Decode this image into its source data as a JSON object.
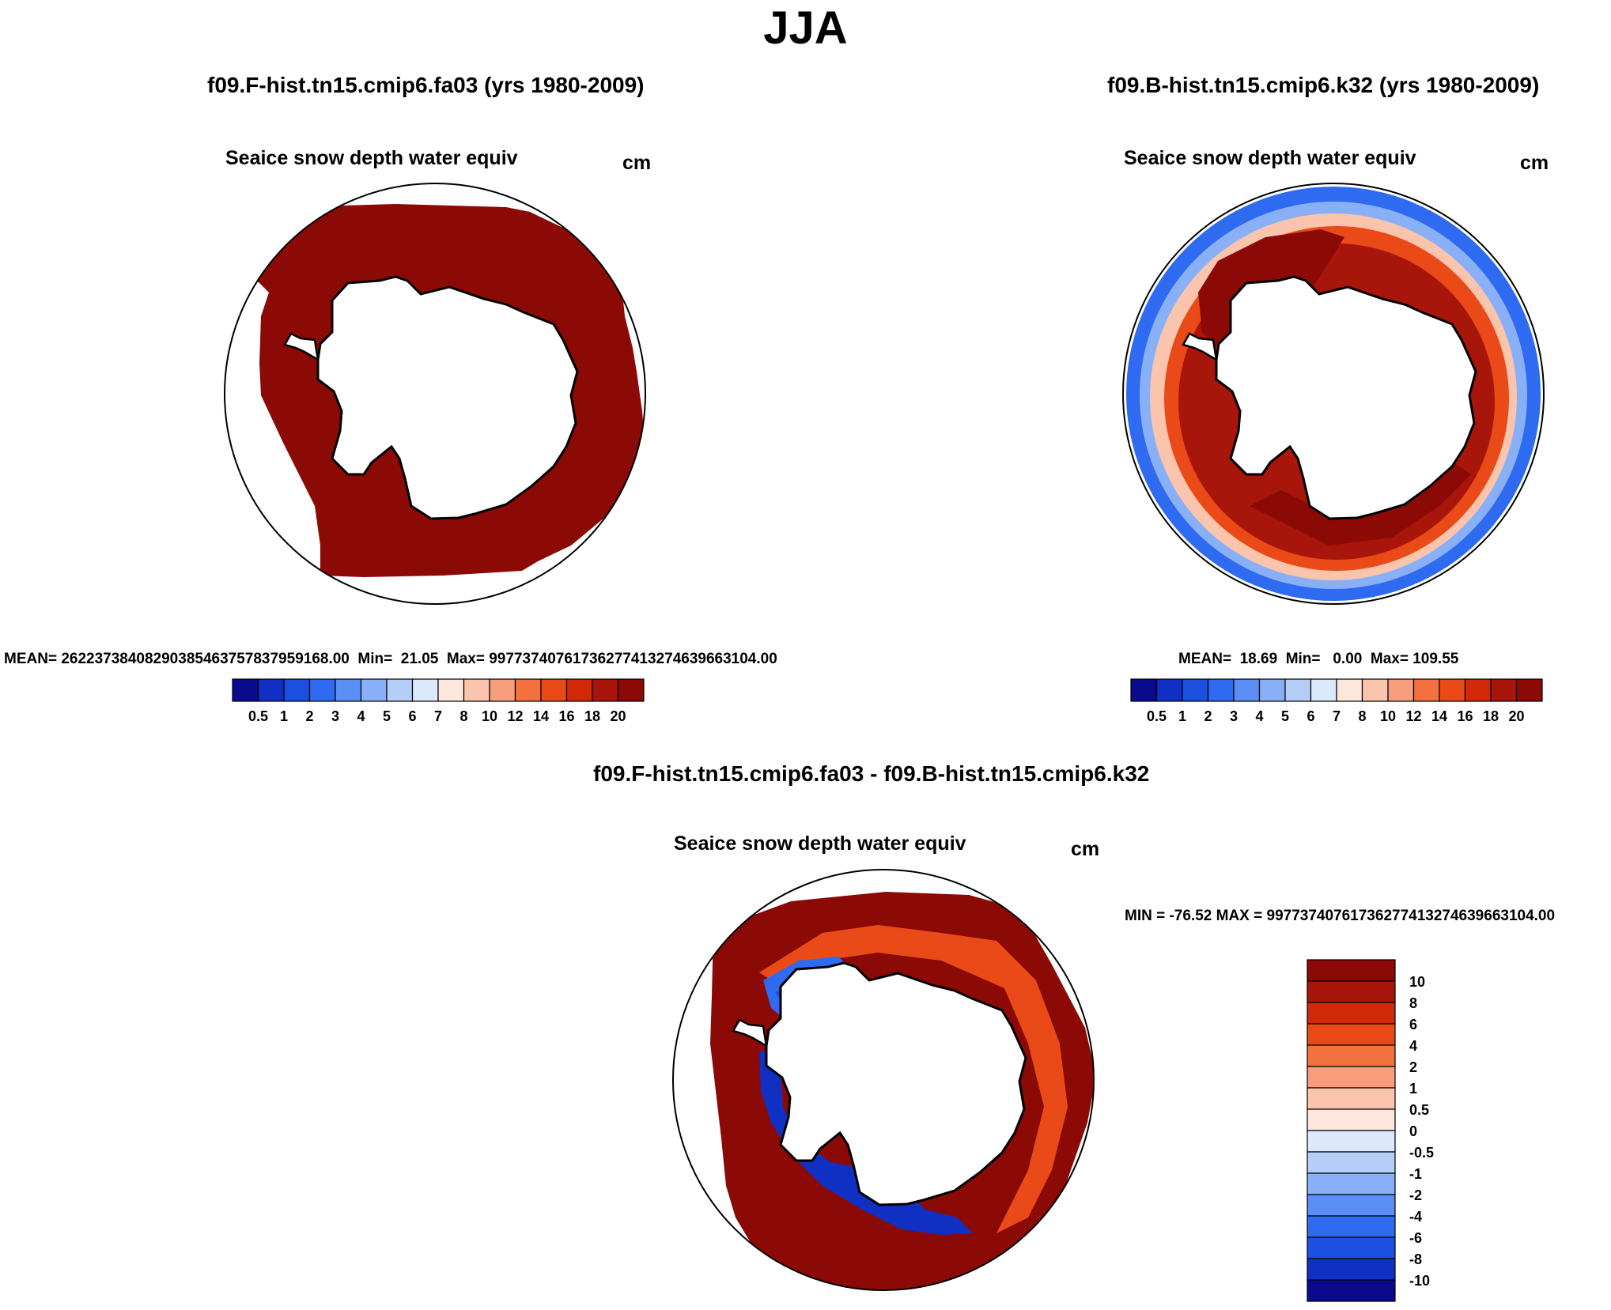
{
  "title": "JJA",
  "panels": [
    {
      "case": "f09.F-hist.tn15.cmip6.fa03 (yrs 1980-2009)",
      "variable": "Seaice snow depth water equiv",
      "units": "cm",
      "stats": "MEAN= 2622373840829038546375783795916 8.00  Min=  21.05  Max= 99773740761736277413274639663104.00"
    },
    {
      "case": "f09.B-hist.tn15.cmip6.k32 (yrs 1980-2009)",
      "variable": "Seaice snow depth water equiv",
      "units": "cm",
      "stats": "MEAN=  18.69  Min=   0.00  Max= 109.55"
    },
    {
      "case": "f09.F-hist.tn15.cmip6.fa03 - f09.B-hist.tn15.cmip6.k32",
      "variable": "Seaice snow depth water equiv",
      "units": "cm",
      "stats": "MIN = -76.52 MAX = 99773740761736277413274639663104.00"
    }
  ],
  "chart_data": [
    {
      "type": "heatmap",
      "title": "f09.F-hist.tn15.cmip6.fa03 (yrs 1980-2009)",
      "subtitle": "Seaice snow depth water equiv",
      "units": "cm",
      "projection": "south polar stereographic",
      "colorbar_levels": [
        "0.5",
        "1",
        "2",
        "3",
        "4",
        "5",
        "6",
        "7",
        "8",
        "10",
        "12",
        "14",
        "16",
        "18",
        "20"
      ],
      "colorbar_colors": [
        "#0a0a8c",
        "#1030c4",
        "#1a4fe0",
        "#2f6bf0",
        "#5a8ef5",
        "#89b0f7",
        "#b5cdf7",
        "#dce8fb",
        "#fde6dc",
        "#fbc4ac",
        "#f79d7c",
        "#f3703f",
        "#ea4a18",
        "#d22a08",
        "#a8150a",
        "#8b0a05"
      ],
      "mean": 2.6223738408290385e+31,
      "min": 21.05,
      "max": 9.977374076173628e+31,
      "dominant_value": "> 20"
    },
    {
      "type": "heatmap",
      "title": "f09.B-hist.tn15.cmip6.k32 (yrs 1980-2009)",
      "subtitle": "Seaice snow depth water equiv",
      "units": "cm",
      "projection": "south polar stereographic",
      "colorbar_levels": [
        "0.5",
        "1",
        "2",
        "3",
        "4",
        "5",
        "6",
        "7",
        "8",
        "10",
        "12",
        "14",
        "16",
        "18",
        "20"
      ],
      "colorbar_colors": [
        "#0a0a8c",
        "#1030c4",
        "#1a4fe0",
        "#2f6bf0",
        "#5a8ef5",
        "#89b0f7",
        "#b5cdf7",
        "#dce8fb",
        "#fde6dc",
        "#fbc4ac",
        "#f79d7c",
        "#f3703f",
        "#ea4a18",
        "#d22a08",
        "#a8150a",
        "#8b0a05"
      ],
      "mean": 18.69,
      "min": 0.0,
      "max": 109.55
    },
    {
      "type": "heatmap",
      "title": "f09.F-hist.tn15.cmip6.fa03 - f09.B-hist.tn15.cmip6.k32",
      "subtitle": "Seaice snow depth water equiv",
      "units": "cm",
      "projection": "south polar stereographic",
      "colorbar_levels": [
        "10",
        "8",
        "6",
        "4",
        "2",
        "1",
        "0.5",
        "0",
        "-0.5",
        "-1",
        "-2",
        "-4",
        "-6",
        "-8",
        "-10"
      ],
      "colorbar_colors": [
        "#8b0a05",
        "#a8150a",
        "#d22a08",
        "#ea4a18",
        "#f3703f",
        "#f79d7c",
        "#fbc4ac",
        "#fde6dc",
        "#dce8fb",
        "#b5cdf7",
        "#89b0f7",
        "#5a8ef5",
        "#2f6bf0",
        "#1a4fe0",
        "#1030c4",
        "#0a0a8c"
      ],
      "min": -76.52,
      "max": 9.977374076173628e+31
    }
  ]
}
